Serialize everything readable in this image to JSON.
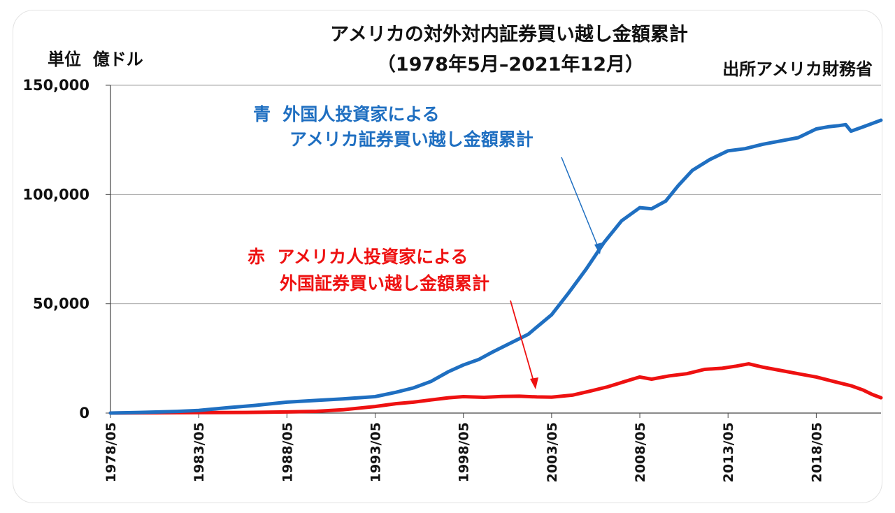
{
  "header": {
    "title": "アメリカの対外対内証券買い越し金額累計",
    "subtitle": "（1978年5月–2021年12月）",
    "unit_label": "単位  億ドル",
    "source": "出所アメリカ財務省"
  },
  "annotations": {
    "blue_line1": "青  外国人投資家による",
    "blue_line2": "アメリカ証券買い越し金額累計",
    "red_line1": "赤  アメリカ人投資家による",
    "red_line2": "外国証券買い越し金額累計"
  },
  "colors": {
    "blue": "#1f6fc1",
    "red": "#ee1111",
    "grid": "#a0a0a0",
    "axis": "#444444"
  },
  "chart_data": {
    "type": "line",
    "title": "アメリカの対外対内証券買い越し金額累計",
    "subtitle": "（1978年5月–2021年12月）",
    "xlabel": "",
    "ylabel": "単位  億ドル",
    "ylim": [
      0,
      150000
    ],
    "xlim": [
      1978.33,
      2022.0
    ],
    "yticks": [
      0,
      50000,
      100000,
      150000
    ],
    "ytick_labels": [
      "0",
      "50,000",
      "100,000",
      "150,000"
    ],
    "xticks": [
      1978.33,
      1983.33,
      1988.33,
      1993.33,
      1998.33,
      2003.33,
      2008.33,
      2013.33,
      2018.33
    ],
    "xtick_labels": [
      "1978/05",
      "1983/05",
      "1988/05",
      "1993/05",
      "1998/05",
      "2003/05",
      "2008/05",
      "2013/05",
      "2018/05"
    ],
    "grid": true,
    "series": [
      {
        "name": "青  外国人投資家による アメリカ証券買い越し金額累計",
        "color": "#1f6fc1",
        "x": [
          1978.33,
          1980,
          1982,
          1983.33,
          1985,
          1986.5,
          1988.33,
          1990,
          1991.5,
          1993.33,
          1994.5,
          1995.5,
          1996.5,
          1997.5,
          1998.33,
          1999.2,
          2000,
          2001,
          2002,
          2003.33,
          2004.3,
          2005.3,
          2006.3,
          2007.3,
          2008.33,
          2009.0,
          2009.8,
          2010.5,
          2011.3,
          2012.3,
          2013.33,
          2014.3,
          2015.3,
          2016.3,
          2017.3,
          2018.33,
          2019.0,
          2019.6,
          2020.0,
          2020.3,
          2021.0,
          2021.5,
          2022.0
        ],
        "y": [
          0,
          300,
          700,
          1200,
          2500,
          3500,
          5000,
          5800,
          6500,
          7500,
          9500,
          11500,
          14500,
          19000,
          22000,
          24500,
          28000,
          32000,
          36000,
          45000,
          55000,
          66000,
          78000,
          88000,
          94000,
          93500,
          97000,
          104000,
          111000,
          116000,
          120000,
          121000,
          123000,
          124500,
          126000,
          130000,
          131000,
          131500,
          132000,
          129000,
          131000,
          132500,
          134000
        ]
      },
      {
        "name": "赤  アメリカ人投資家による 外国証券買い越し金額累計",
        "color": "#ee1111",
        "x": [
          1978.33,
          1980,
          1983.33,
          1986,
          1988.33,
          1990,
          1991.5,
          1993.33,
          1994.5,
          1995.5,
          1996.5,
          1997.5,
          1998.33,
          1999.5,
          2000.5,
          2001.5,
          2002.5,
          2003.33,
          2004.5,
          2005.5,
          2006.5,
          2007.5,
          2008.33,
          2009.0,
          2010.0,
          2011.0,
          2012.0,
          2013.0,
          2013.8,
          2014.5,
          2015.3,
          2016.3,
          2017.3,
          2018.33,
          2019.3,
          2020.3,
          2021.0,
          2021.5,
          2022.0
        ],
        "y": [
          0,
          100,
          200,
          300,
          500,
          800,
          1500,
          3000,
          4300,
          5000,
          6000,
          7000,
          7500,
          7200,
          7600,
          7700,
          7400,
          7300,
          8200,
          10000,
          12000,
          14500,
          16500,
          15500,
          17000,
          18000,
          20000,
          20500,
          21500,
          22500,
          21000,
          19500,
          18000,
          16500,
          14500,
          12500,
          10500,
          8500,
          7000
        ]
      }
    ]
  }
}
